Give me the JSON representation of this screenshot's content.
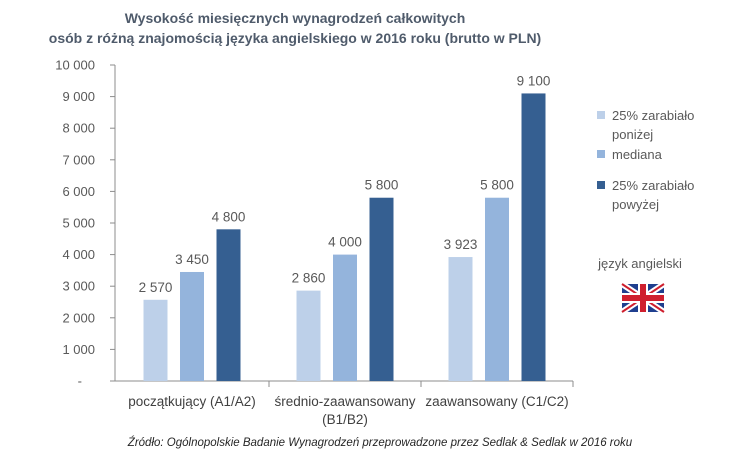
{
  "chart_data": {
    "type": "bar",
    "title_lines": [
      "Wysokość miesięcznych wynagrodzeń całkowitych",
      "osób z różną znajomością języka angielskiego w 2016 roku (brutto w PLN)"
    ],
    "categories": [
      [
        "początkujący (A1/A2)"
      ],
      [
        "średnio-zaawansowany",
        "(B1/B2)"
      ],
      [
        "zaawansowany (C1/C2)"
      ]
    ],
    "series": [
      {
        "name_lines": [
          "25% zarabiało",
          "poniżej"
        ],
        "color": "#bdd0e9",
        "values": [
          2570,
          2860,
          3923
        ],
        "labels": [
          "2 570",
          "2 860",
          "3 923"
        ]
      },
      {
        "name_lines": [
          "mediana"
        ],
        "color": "#94b4dc",
        "values": [
          3450,
          4000,
          5800
        ],
        "labels": [
          "3 450",
          "4 000",
          "5 800"
        ]
      },
      {
        "name_lines": [
          "25% zarabiało",
          "powyżej"
        ],
        "color": "#355f91",
        "values": [
          4800,
          5800,
          9100
        ],
        "labels": [
          "4 800",
          "5 800",
          "9 100"
        ]
      }
    ],
    "ylim": [
      0,
      10000
    ],
    "yticks": [
      {
        "value": 0,
        "label": "-"
      },
      {
        "value": 1000,
        "label": "1 000"
      },
      {
        "value": 2000,
        "label": "2 000"
      },
      {
        "value": 3000,
        "label": "3 000"
      },
      {
        "value": 4000,
        "label": "4 000"
      },
      {
        "value": 5000,
        "label": "5 000"
      },
      {
        "value": 6000,
        "label": "6 000"
      },
      {
        "value": 7000,
        "label": "7 000"
      },
      {
        "value": 8000,
        "label": "8 000"
      },
      {
        "value": 9000,
        "label": "9 000"
      },
      {
        "value": 10000,
        "label": "10 000"
      }
    ],
    "grid": false,
    "legend_position": "right",
    "legend_note": "język angielski",
    "flag_icon": "uk-flag-icon",
    "source": "Źródło: Ogólnopolskie Badanie Wynagrodzeń przeprowadzone przez Sedlak & Sedlak w 2016 roku"
  }
}
